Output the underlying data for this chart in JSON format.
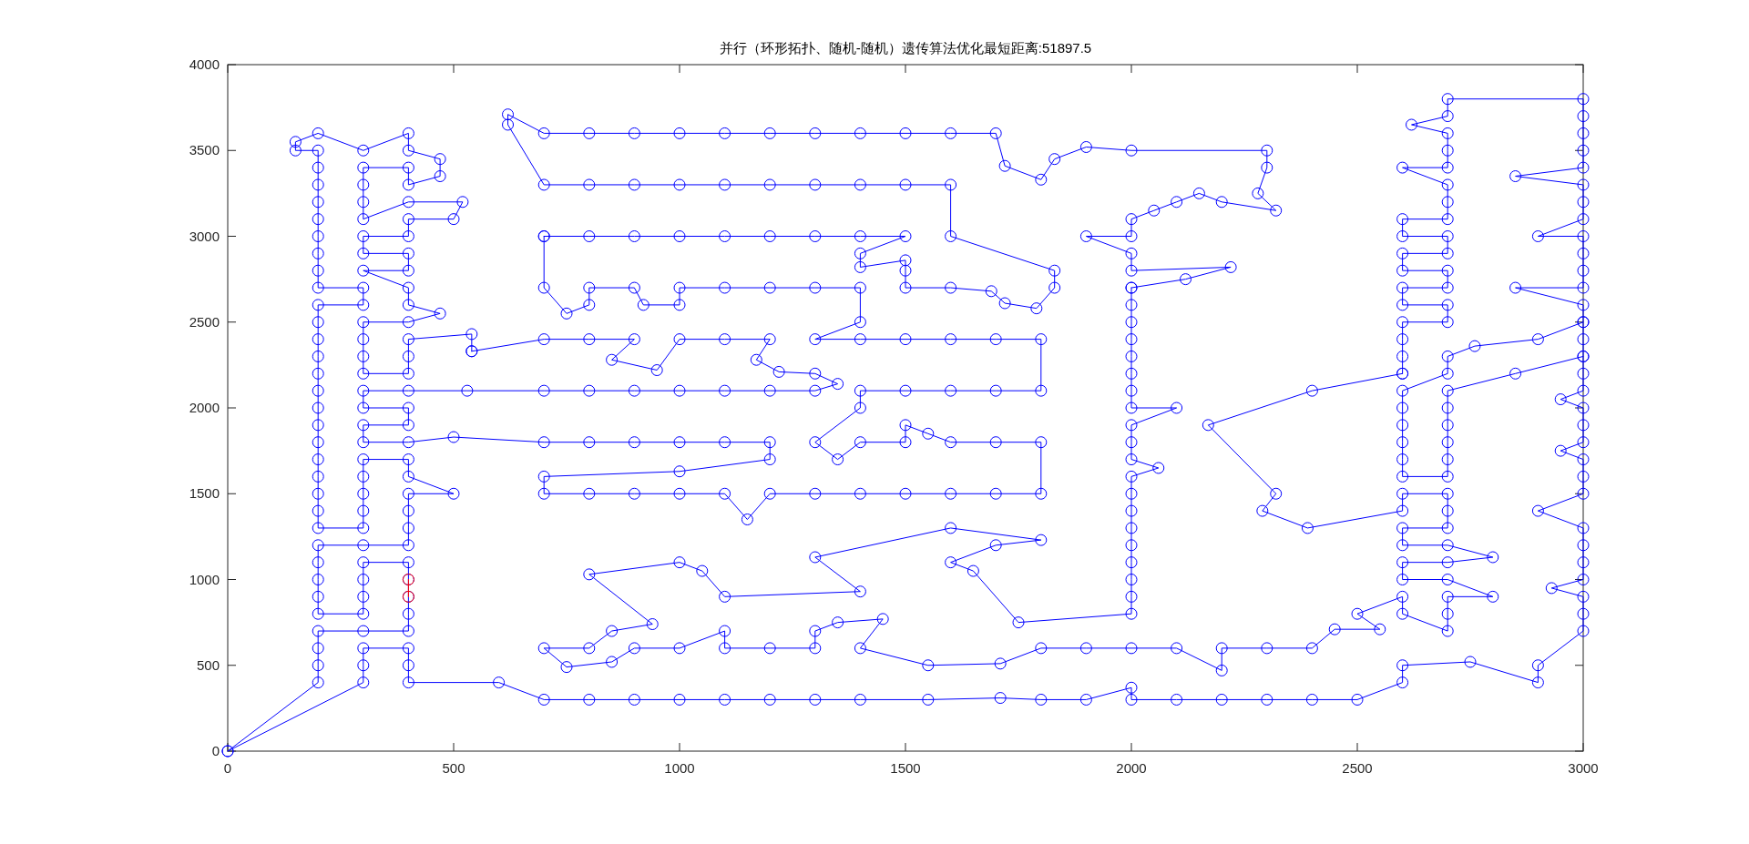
{
  "chart_data": {
    "type": "line",
    "title": "并行（环形拓扑、随机-随机）遗传算法优化最短距离:51897.5",
    "xlim": [
      0,
      3000
    ],
    "ylim": [
      0,
      4000
    ],
    "xticks": [
      0,
      500,
      1000,
      1500,
      2000,
      2500,
      3000
    ],
    "yticks": [
      0,
      500,
      1000,
      1500,
      2000,
      2500,
      3000,
      3500,
      4000
    ],
    "marker": "circle",
    "line_style": "solid",
    "series": [
      {
        "color": "#0000ff",
        "x": [
          0,
          200,
          200,
          200,
          200,
          300,
          400,
          400,
          400,
          400,
          400,
          300,
          300,
          300,
          300,
          200,
          200,
          200,
          200,
          200,
          300,
          400,
          400,
          400,
          400,
          500,
          400,
          400,
          300,
          300,
          300,
          300,
          300,
          200,
          200,
          200,
          200,
          200,
          200,
          200,
          200,
          200,
          200,
          200,
          200,
          200,
          200,
          300,
          300,
          200,
          200,
          200,
          200,
          200,
          200,
          200,
          200,
          200,
          150,
          150,
          200,
          300,
          400,
          400,
          470,
          470,
          400,
          400,
          300,
          300,
          300,
          300,
          400,
          520,
          500,
          400,
          400,
          300,
          300,
          400,
          400,
          300,
          400,
          400,
          470,
          400,
          300,
          300,
          300,
          300,
          400,
          400,
          400,
          540,
          540
        ],
        "values": [
          0,
          400,
          500,
          600,
          700,
          700,
          700,
          800,
          900,
          1000,
          1100,
          1100,
          1000,
          900,
          800,
          800,
          900,
          1000,
          1100,
          1200,
          1200,
          1200,
          1300,
          1400,
          1500,
          1500,
          1600,
          1700,
          1700,
          1600,
          1500,
          1400,
          1300,
          1300,
          1400,
          1500,
          1600,
          1700,
          1800,
          1900,
          2000,
          2100,
          2200,
          2300,
          2400,
          2500,
          2600,
          2600,
          2700,
          2700,
          2800,
          2900,
          3000,
          3100,
          3200,
          3300,
          3400,
          3500,
          3500,
          3550,
          3600,
          3500,
          3600,
          3500,
          3450,
          3350,
          3300,
          3400,
          3400,
          3300,
          3200,
          3100,
          3200,
          3200,
          3100,
          3100,
          3000,
          3000,
          2900,
          2900,
          2800,
          2800,
          2700,
          2600,
          2550,
          2500,
          2500,
          2400,
          2300,
          2200,
          2200,
          2300,
          2400,
          2430,
          2330
        ]
      },
      {
        "color": "#0000ff",
        "x": [
          540,
          700,
          800,
          900,
          850,
          950,
          1000,
          1100,
          1200,
          1170,
          1220,
          1300,
          1350,
          1300,
          1200,
          1100,
          1000,
          900,
          800,
          700,
          530,
          400,
          300,
          300,
          400,
          400,
          300,
          300,
          400,
          500,
          700,
          800,
          900,
          1000,
          1100,
          1200,
          1200,
          1000,
          700,
          700,
          800,
          900,
          1000,
          1100,
          1150,
          1200,
          1300,
          1400,
          1500,
          1600,
          1700,
          1800,
          1800,
          1700,
          1600,
          1550,
          1500,
          1500,
          1400,
          1350,
          1300,
          1400,
          1400,
          1500,
          1600,
          1700,
          1800,
          1800,
          1700,
          1600,
          1500,
          1400,
          1300,
          1400,
          1400,
          1300,
          1200,
          1100,
          1000,
          1000,
          920,
          900,
          800,
          800,
          750,
          700,
          700
        ],
        "values": [
          2330,
          2400,
          2400,
          2400,
          2280,
          2220,
          2400,
          2400,
          2400,
          2280,
          2210,
          2200,
          2140,
          2100,
          2100,
          2100,
          2100,
          2100,
          2100,
          2100,
          2100,
          2100,
          2100,
          2000,
          2000,
          1900,
          1900,
          1800,
          1800,
          1830,
          1800,
          1800,
          1800,
          1800,
          1800,
          1800,
          1700,
          1630,
          1600,
          1500,
          1500,
          1500,
          1500,
          1500,
          1350,
          1500,
          1500,
          1500,
          1500,
          1500,
          1500,
          1500,
          1800,
          1800,
          1800,
          1850,
          1900,
          1800,
          1800,
          1700,
          1800,
          2000,
          2100,
          2100,
          2100,
          2100,
          2100,
          2400,
          2400,
          2400,
          2400,
          2400,
          2400,
          2500,
          2700,
          2700,
          2700,
          2700,
          2700,
          2600,
          2600,
          2700,
          2700,
          2600,
          2550,
          2700,
          3000
        ]
      },
      {
        "color": "#0000ff",
        "x": [
          700,
          800,
          900,
          1000,
          1100,
          1200,
          1300,
          1400,
          1500,
          1400,
          1400,
          1500,
          1500,
          1500,
          1600,
          1690,
          1720,
          1790,
          1830,
          1830,
          1600,
          1600,
          1500,
          1400,
          1300,
          1200,
          1100,
          1000,
          900,
          800,
          700,
          620,
          620,
          700,
          800,
          900,
          1000,
          1100,
          1200,
          1300,
          1400,
          1500,
          1600,
          1700,
          1720,
          1800,
          1830,
          1900,
          2000,
          2300,
          2300,
          2280,
          2320,
          2200,
          2150,
          2100,
          2050,
          2000,
          2000,
          1900,
          2000,
          2000,
          2220,
          2120,
          2000
        ],
        "values": [
          3000,
          3000,
          3000,
          3000,
          3000,
          3000,
          3000,
          3000,
          3000,
          2900,
          2820,
          2860,
          2800,
          2700,
          2700,
          2680,
          2610,
          2580,
          2700,
          2800,
          3000,
          3300,
          3300,
          3300,
          3300,
          3300,
          3300,
          3300,
          3300,
          3300,
          3300,
          3650,
          3710,
          3600,
          3600,
          3600,
          3600,
          3600,
          3600,
          3600,
          3600,
          3600,
          3600,
          3600,
          3410,
          3330,
          3450,
          3520,
          3500,
          3500,
          3400,
          3250,
          3150,
          3200,
          3250,
          3200,
          3150,
          3100,
          3000,
          3000,
          2900,
          2800,
          2820,
          2750,
          2700
        ]
      },
      {
        "color": "#0000ff",
        "x": [
          2000,
          2000,
          2000,
          2000,
          2000,
          2000,
          2000,
          2000,
          2100,
          2000,
          2000,
          2000,
          2060,
          2000,
          2000,
          2000,
          2000,
          2000,
          2000,
          2000,
          2000,
          2000,
          1750,
          1650,
          1600,
          1700,
          1800,
          1600,
          1300,
          1400,
          1100,
          1050,
          1000,
          800,
          940,
          850,
          800,
          700,
          750,
          850,
          900,
          1000,
          1100,
          1100,
          1200,
          1300,
          1300,
          1350,
          1450,
          1400,
          1550,
          1710,
          1800,
          1900,
          2000,
          2100,
          2200,
          2200,
          2300,
          2400,
          2450,
          2550,
          2500,
          2600,
          2600,
          2700,
          2700,
          2700,
          2800,
          2700,
          2600,
          2600,
          2700,
          2800,
          2700,
          2600,
          2600,
          2700,
          2700,
          2700,
          2600,
          2600,
          2390,
          2290,
          2320,
          2170,
          2400,
          2600
        ],
        "values": [
          2700,
          2600,
          2500,
          2400,
          2300,
          2200,
          2100,
          2000,
          2000,
          1900,
          1800,
          1700,
          1650,
          1600,
          1500,
          1400,
          1300,
          1200,
          1100,
          1000,
          900,
          800,
          750,
          1050,
          1100,
          1200,
          1230,
          1300,
          1130,
          930,
          900,
          1050,
          1100,
          1030,
          740,
          700,
          600,
          600,
          490,
          520,
          600,
          600,
          700,
          600,
          600,
          600,
          700,
          750,
          770,
          600,
          500,
          510,
          600,
          600,
          600,
          600,
          470,
          600,
          600,
          600,
          710,
          710,
          800,
          900,
          800,
          700,
          800,
          900,
          900,
          1000,
          1000,
          1100,
          1100,
          1130,
          1200,
          1200,
          1300,
          1300,
          1400,
          1500,
          1500,
          1400,
          1300,
          1400,
          1500,
          1900,
          2100,
          2200
        ]
      },
      {
        "color": "#0000ff",
        "x": [
          2600,
          2600,
          2600,
          2600,
          2700,
          2700,
          2600,
          2600,
          2700,
          2700,
          2600,
          2600,
          2700,
          2700,
          2600,
          2600,
          2700,
          2700,
          2700,
          2600,
          2700,
          2700,
          2700,
          2620,
          2700,
          2700,
          3000,
          3000,
          3000,
          3000,
          3000,
          2850,
          3000,
          3000,
          3000,
          2900,
          3000,
          3000,
          3000,
          3000,
          2850,
          3000,
          3000,
          2900,
          2760,
          2700,
          2700,
          2600,
          2600,
          2600,
          2600,
          2600,
          2600,
          2700,
          2700,
          2700,
          2700,
          2700,
          2700,
          2850,
          3000,
          3000,
          3000,
          2950,
          3000,
          3000,
          3000,
          2950,
          3000,
          3000,
          3000,
          2900,
          3000,
          3000,
          3000,
          3000,
          2930,
          3000,
          3000,
          3000,
          2900,
          2900,
          2750,
          2600,
          2600,
          2500,
          2400,
          2300,
          2200,
          2100,
          2000,
          2000,
          1900,
          1800,
          1710,
          1550,
          1400,
          1300,
          1200,
          1100,
          1000,
          900,
          800,
          700,
          600,
          400,
          400,
          400,
          300,
          300,
          300,
          0
        ],
        "values": [
          2200,
          2300,
          2400,
          2500,
          2500,
          2600,
          2600,
          2700,
          2700,
          2800,
          2800,
          2900,
          2900,
          3000,
          3000,
          3100,
          3100,
          3200,
          3300,
          3400,
          3400,
          3500,
          3600,
          3650,
          3700,
          3800,
          3800,
          3700,
          3600,
          3500,
          3400,
          3350,
          3300,
          3200,
          3100,
          3000,
          3000,
          2900,
          2800,
          2700,
          2700,
          2600,
          2500,
          2400,
          2360,
          2300,
          2200,
          2100,
          2000,
          1900,
          1800,
          1700,
          1600,
          1600,
          1700,
          1800,
          1900,
          2000,
          2100,
          2200,
          2300,
          2200,
          2100,
          2050,
          2000,
          1900,
          1800,
          1750,
          1700,
          1600,
          1500,
          1400,
          1300,
          1200,
          1100,
          1000,
          950,
          900,
          800,
          700,
          500,
          400,
          520,
          500,
          400,
          300,
          300,
          300,
          300,
          300,
          300,
          370,
          300,
          300,
          310,
          300,
          300,
          300,
          300,
          300,
          300,
          300,
          300,
          300,
          400,
          400,
          500,
          600,
          600,
          500,
          400,
          0
        ]
      },
      {
        "color": "#0000ff",
        "x": [
          3000,
          3000,
          3000
        ],
        "values": [
          2500,
          2400,
          2300
        ]
      },
      {
        "color": "#ff0000",
        "x": [
          400,
          400
        ],
        "values": [
          1000,
          900
        ]
      }
    ]
  }
}
